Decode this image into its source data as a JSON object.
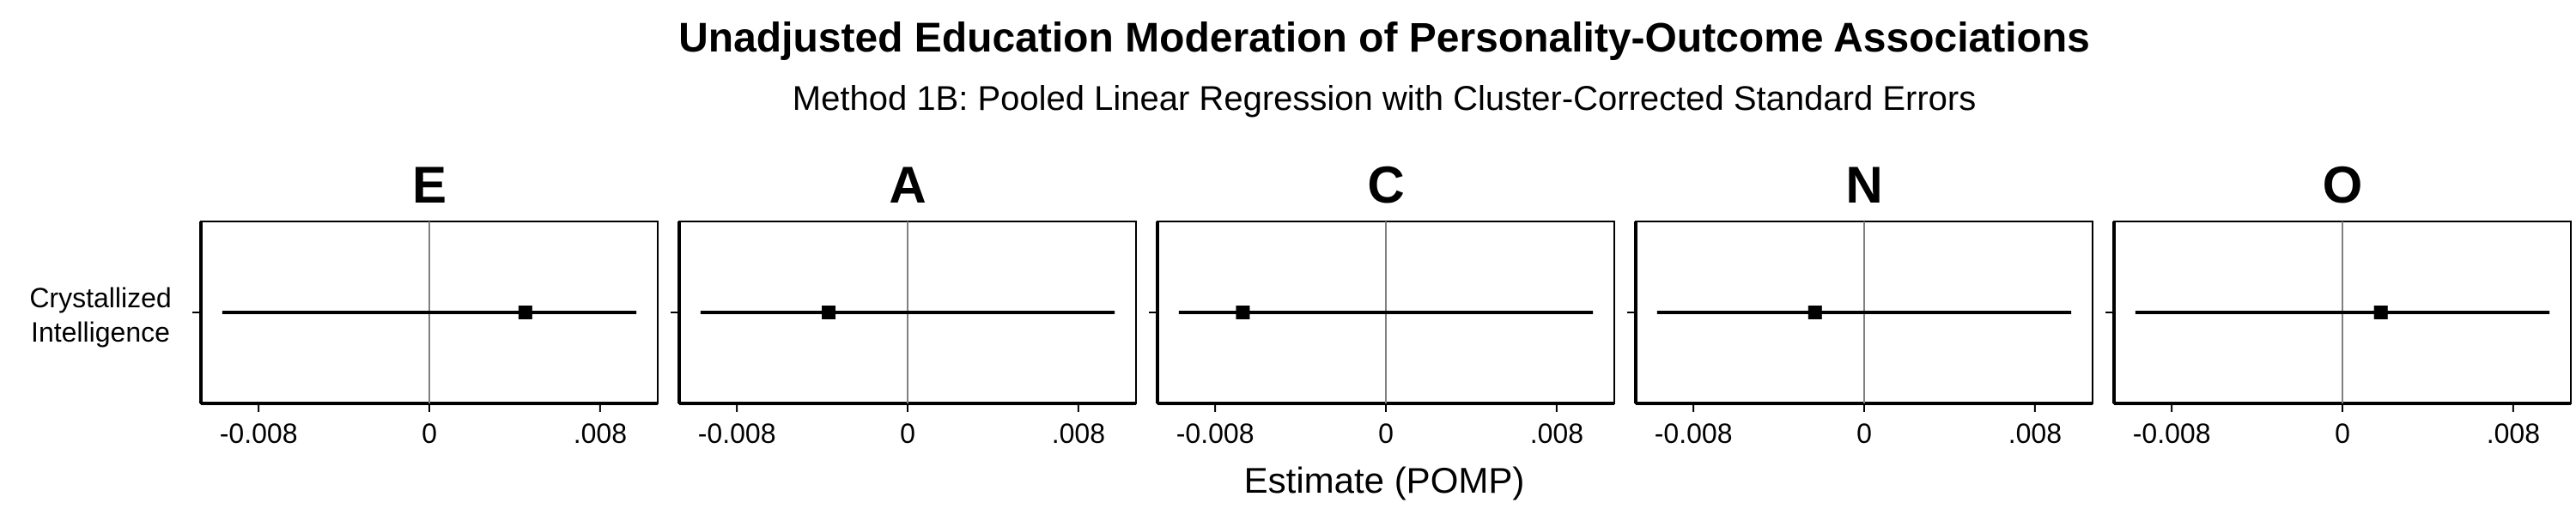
{
  "chart_data": {
    "type": "forest",
    "title": "Unadjusted Education Moderation of Personality-Outcome Associations",
    "subtitle": "Method 1B: Pooled Linear Regression with Cluster-Corrected Standard Errors",
    "xlabel": "Estimate (POMP)",
    "ylabel": "",
    "row_labels": [
      "Crystallized",
      "Intelligence"
    ],
    "xlim": [
      -0.0107,
      0.0107
    ],
    "x_ticks": [
      -0.008,
      0,
      0.008
    ],
    "x_tick_labels": [
      "-0.008",
      "0",
      ".008"
    ],
    "reference_line": 0,
    "grid": false,
    "colors": {
      "point": "#000000",
      "line": "#000000",
      "reference": "#808080",
      "frame": "#000000"
    },
    "facets": [
      {
        "name": "E",
        "estimate": 0.0045,
        "ci_low": -0.0097,
        "ci_high": 0.0097
      },
      {
        "name": "A",
        "estimate": -0.0037,
        "ci_low": -0.0097,
        "ci_high": 0.0097
      },
      {
        "name": "C",
        "estimate": -0.0067,
        "ci_low": -0.0097,
        "ci_high": 0.0097
      },
      {
        "name": "N",
        "estimate": -0.0023,
        "ci_low": -0.0097,
        "ci_high": 0.0097
      },
      {
        "name": "O",
        "estimate": 0.0018,
        "ci_low": -0.0097,
        "ci_high": 0.0097
      }
    ]
  }
}
